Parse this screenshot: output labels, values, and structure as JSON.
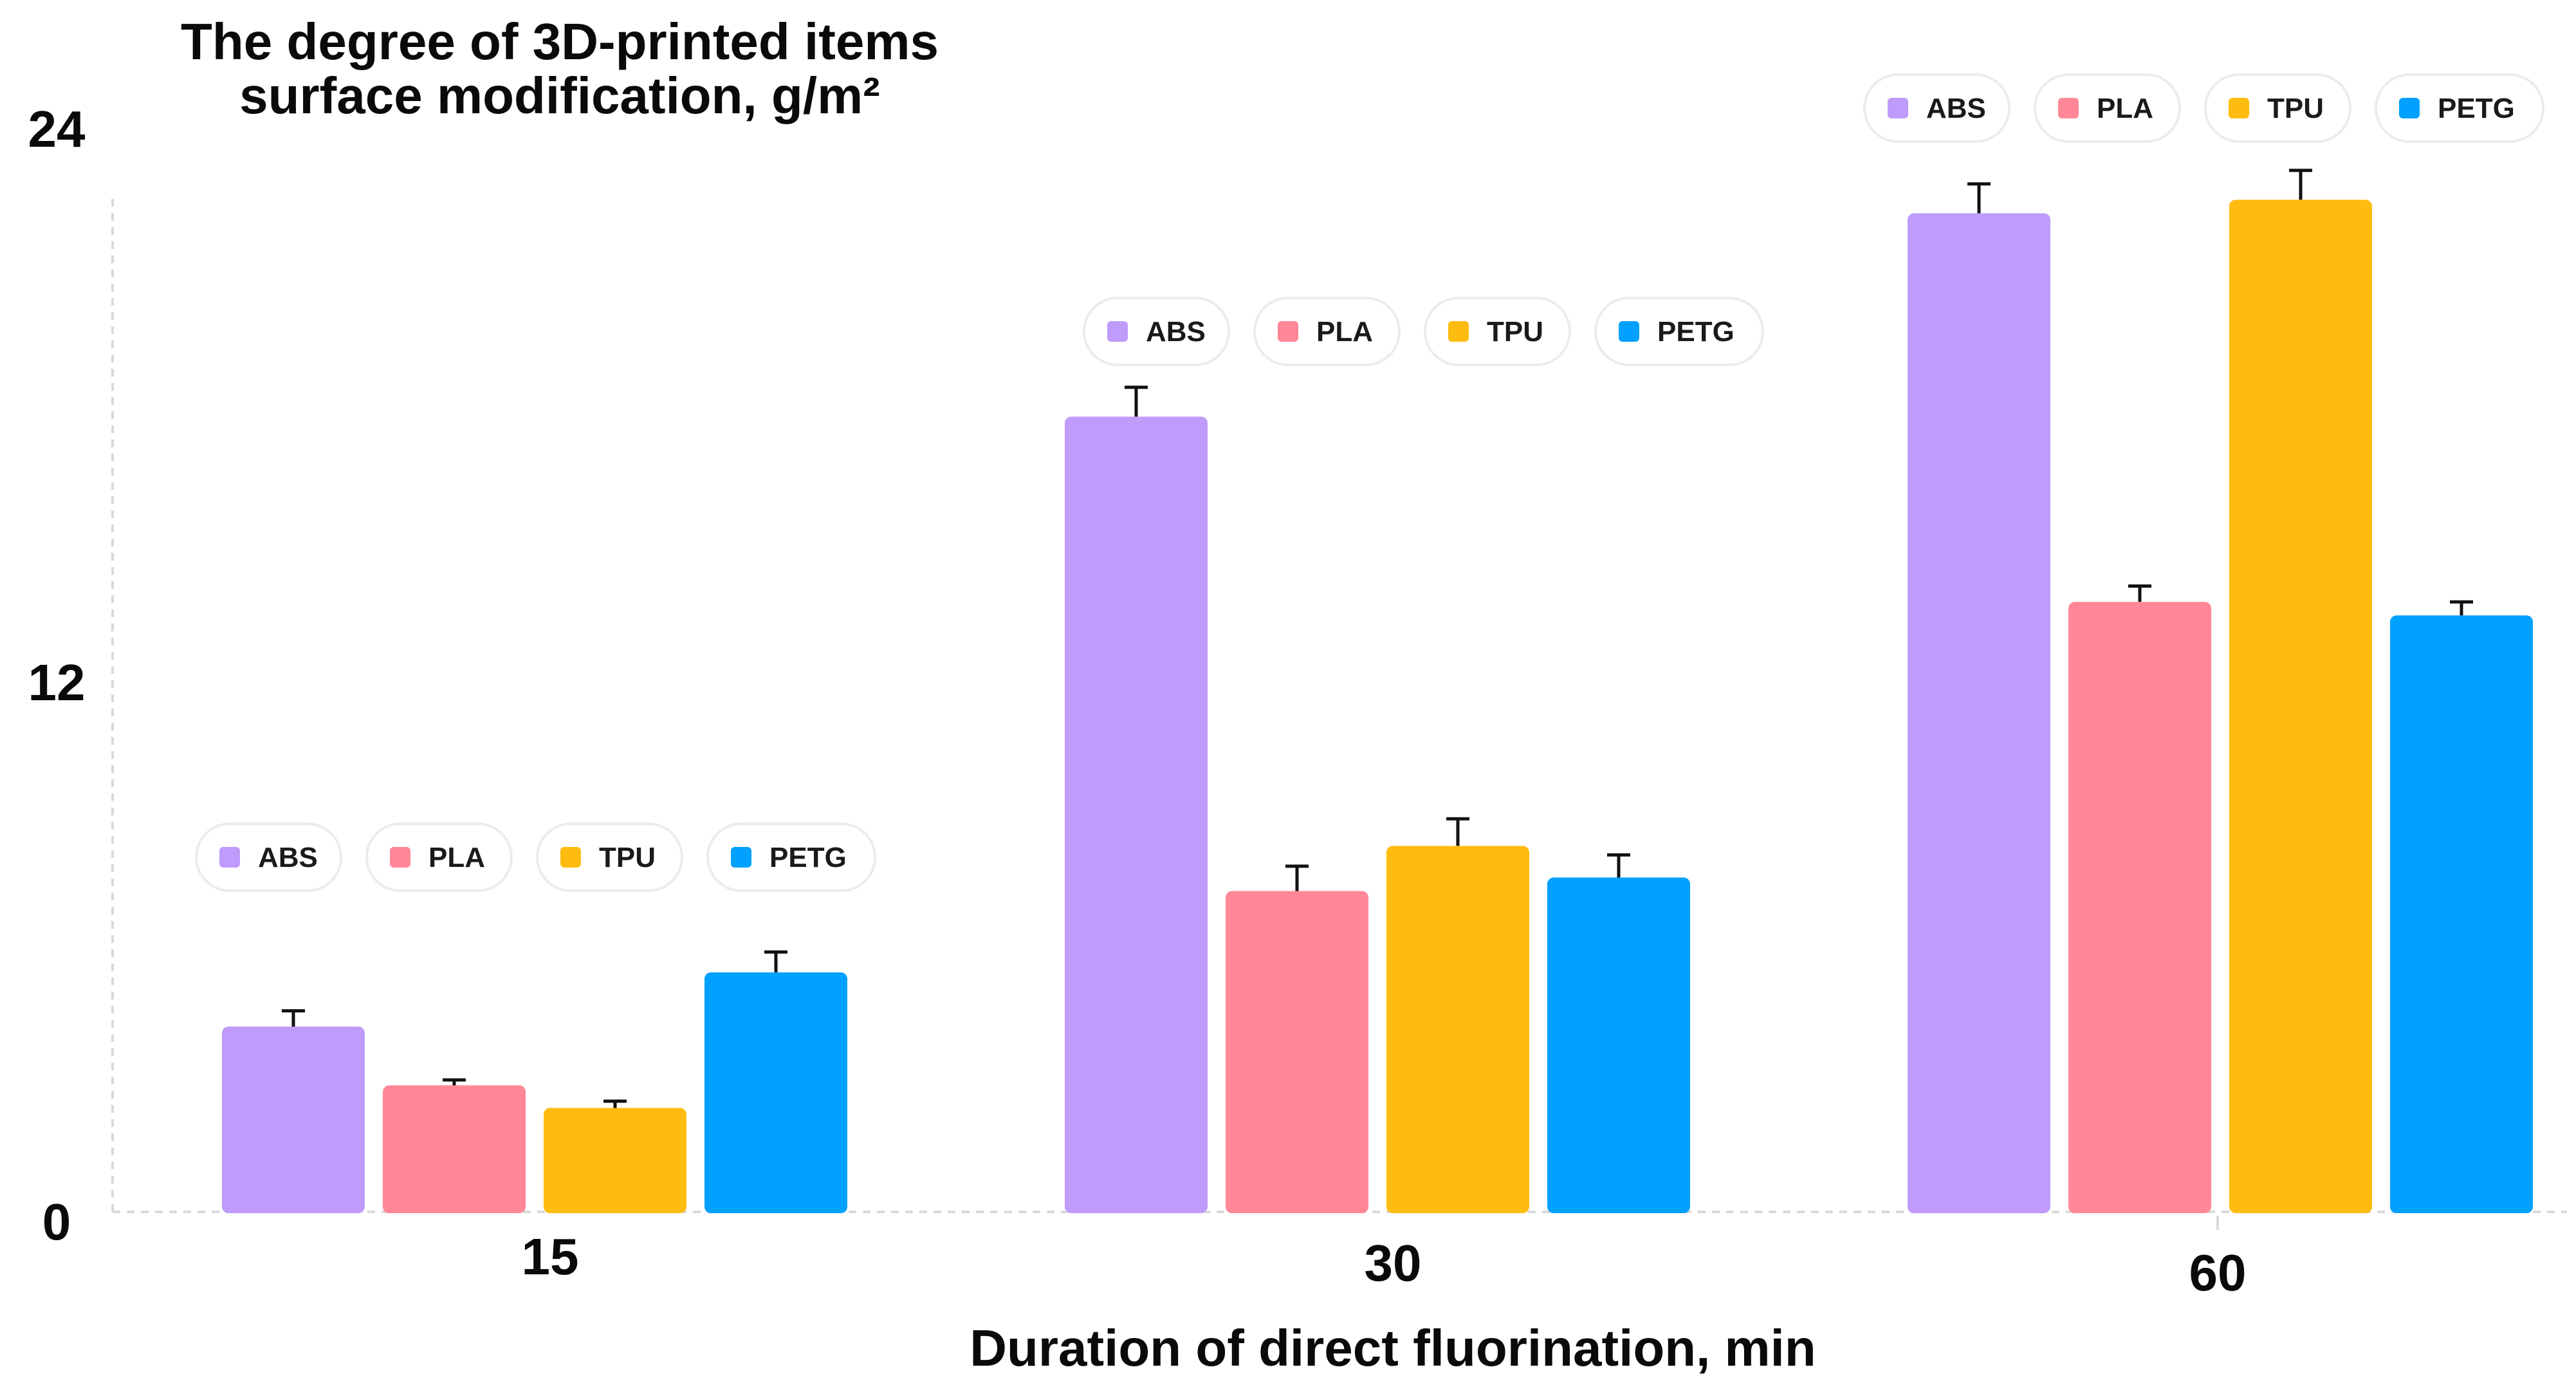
{
  "chart_data": {
    "type": "bar",
    "title": "The degree of 3D-printed items surface modification, g/m²",
    "title_lines": [
      "The degree of 3D-printed items",
      "surface modification, g/m²"
    ],
    "xlabel": "Duration of direct fluorination, min",
    "ylabel": "",
    "categories": [
      "15",
      "30",
      "60"
    ],
    "ylim": [
      0,
      24
    ],
    "yticks": [
      0,
      12,
      24
    ],
    "grid": false,
    "legend": "repeated above each category group",
    "series": [
      {
        "name": "ABS",
        "color": "#BF9BFB",
        "values": [
          4.1,
          17.6,
          22.1
        ],
        "errors": [
          0.35,
          0.65,
          0.65
        ]
      },
      {
        "name": "PLA",
        "color": "#FF8797",
        "values": [
          2.8,
          7.1,
          13.5
        ],
        "errors": [
          0.12,
          0.55,
          0.35
        ]
      },
      {
        "name": "TPU",
        "color": "#FFBC10",
        "values": [
          2.3,
          8.1,
          22.4
        ],
        "errors": [
          0.15,
          0.6,
          0.65
        ]
      },
      {
        "name": "PETG",
        "color": "#00A0FE",
        "values": [
          5.3,
          7.4,
          13.2
        ],
        "errors": [
          0.45,
          0.5,
          0.3
        ]
      }
    ]
  }
}
